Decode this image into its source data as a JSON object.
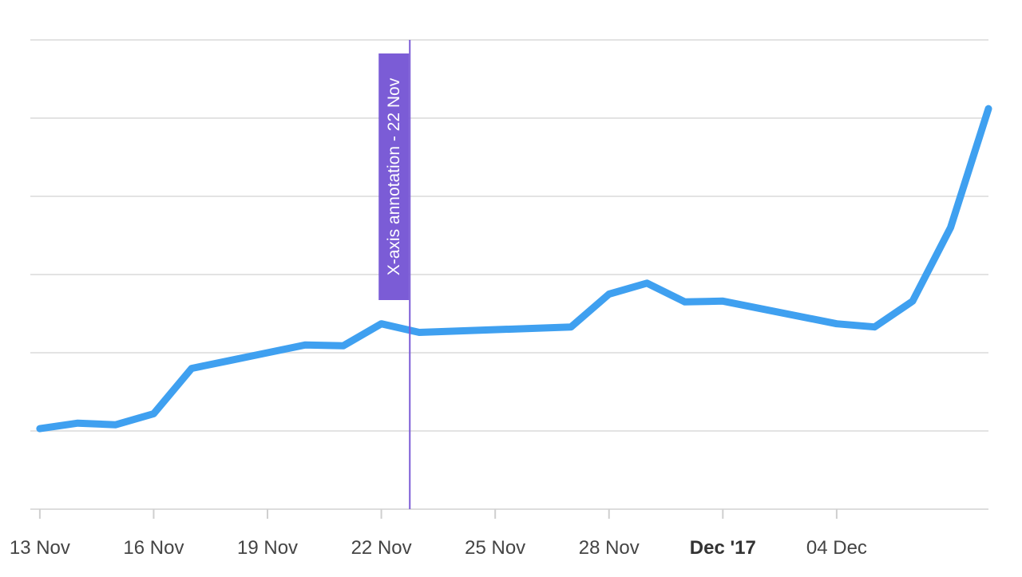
{
  "chart_data": {
    "type": "line",
    "title": "",
    "xlabel": "",
    "ylabel": "",
    "x_type": "date",
    "x": [
      "2017-11-13",
      "2017-11-14",
      "2017-11-15",
      "2017-11-16",
      "2017-11-17",
      "2017-11-18",
      "2017-11-19",
      "2017-11-20",
      "2017-11-21",
      "2017-11-22",
      "2017-11-23",
      "2017-11-27",
      "2017-11-28",
      "2017-11-29",
      "2017-11-30",
      "2017-12-01",
      "2017-12-04",
      "2017-12-05",
      "2017-12-06",
      "2017-12-07",
      "2017-12-08"
    ],
    "xlim": [
      "2017-11-12T18:00",
      "2017-12-08"
    ],
    "ylim": [
      0,
      6
    ],
    "y_gridlines": [
      1,
      2,
      3,
      4,
      5,
      6
    ],
    "series": [
      {
        "color": "#3fa0f0",
        "values": [
          1.03,
          1.1,
          1.08,
          1.22,
          1.8,
          1.9,
          2.0,
          2.1,
          2.09,
          2.37,
          2.26,
          2.33,
          2.75,
          2.89,
          2.65,
          2.66,
          2.37,
          2.33,
          2.66,
          3.6,
          5.12
        ]
      }
    ],
    "x_ticks": [
      {
        "date": "2017-11-13",
        "label": "13 Nov",
        "bold": false
      },
      {
        "date": "2017-11-16",
        "label": "16 Nov",
        "bold": false
      },
      {
        "date": "2017-11-19",
        "label": "19 Nov",
        "bold": false
      },
      {
        "date": "2017-11-22",
        "label": "22 Nov",
        "bold": false
      },
      {
        "date": "2017-11-25",
        "label": "25 Nov",
        "bold": false
      },
      {
        "date": "2017-11-28",
        "label": "28 Nov",
        "bold": false
      },
      {
        "date": "2017-12-01",
        "label": "Dec '17",
        "bold": true
      },
      {
        "date": "2017-12-04",
        "label": "04 Dec",
        "bold": false
      }
    ],
    "annotations": [
      {
        "axis": "x",
        "date": "2017-11-22T18:00",
        "label": "X-axis annotation - 22 Nov",
        "color": "#7b5cd6"
      }
    ],
    "grid": true,
    "legend": "none"
  }
}
